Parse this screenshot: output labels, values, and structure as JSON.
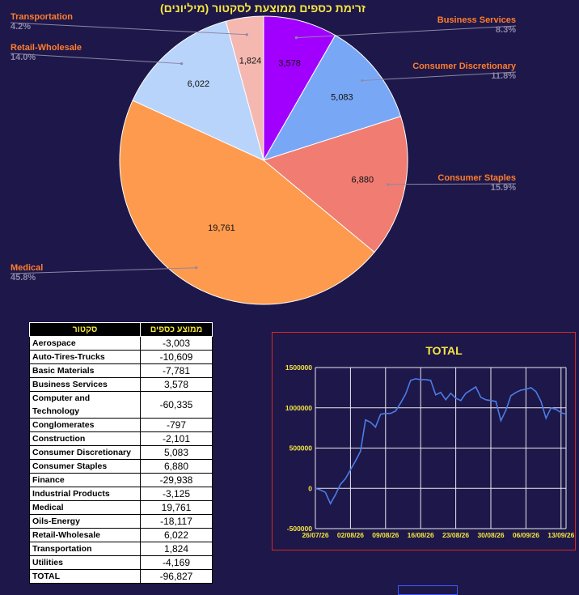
{
  "chart_data": [
    {
      "type": "pie",
      "title": "זרימת כספים ממוצעת לסקטור (מיליונים)",
      "slices": [
        {
          "label": "Business Services",
          "value": 3578,
          "value_label": "3,578",
          "pct_label": "8.3%",
          "color": "#a100fe"
        },
        {
          "label": "Consumer Discretionary",
          "value": 5083,
          "value_label": "5,083",
          "pct_label": "11.8%",
          "color": "#78a8f5"
        },
        {
          "label": "Consumer Staples",
          "value": 6880,
          "value_label": "6,880",
          "pct_label": "15.9%",
          "color": "#f07c72"
        },
        {
          "label": "Medical",
          "value": 19761,
          "value_label": "19,761",
          "pct_label": "45.8%",
          "color": "#fd9a4e"
        },
        {
          "label": "Retail-Wholesale",
          "value": 6022,
          "value_label": "6,022",
          "pct_label": "14.0%",
          "color": "#b8d4fb"
        },
        {
          "label": "Transportation",
          "value": 1824,
          "value_label": "1,824",
          "pct_label": "4.2%",
          "color": "#f5b8b0"
        }
      ],
      "label_color": "#ff7d2e"
    },
    {
      "type": "table",
      "columns": [
        "סקטור",
        "ממוצע כספים"
      ],
      "rows": [
        [
          "Aerospace",
          "-3,003"
        ],
        [
          "Auto-Tires-Trucks",
          "-10,609"
        ],
        [
          "Basic Materials",
          "-7,781"
        ],
        [
          "Business Services",
          "3,578"
        ],
        [
          "Computer and Technology",
          "-60,335"
        ],
        [
          "Conglomerates",
          "-797"
        ],
        [
          "Construction",
          "-2,101"
        ],
        [
          "Consumer Discretionary",
          "5,083"
        ],
        [
          "Consumer Staples",
          "6,880"
        ],
        [
          "Finance",
          "-29,938"
        ],
        [
          "Industrial Products",
          "-3,125"
        ],
        [
          "Medical",
          "19,761"
        ],
        [
          "Oils-Energy",
          "-18,117"
        ],
        [
          "Retail-Wholesale",
          "6,022"
        ],
        [
          "Transportation",
          "1,824"
        ],
        [
          "Utilities",
          "-4,169"
        ],
        [
          "TOTAL",
          "-96,827"
        ]
      ]
    },
    {
      "type": "line",
      "title": "TOTAL",
      "x_ticks": [
        "26/07/26",
        "02/08/26",
        "09/08/26",
        "16/08/26",
        "23/08/26",
        "30/08/26",
        "06/09/26",
        "13/09/26"
      ],
      "y_ticks": [
        1500000,
        1000000,
        500000,
        0,
        -500000
      ],
      "y_tick_labels": [
        "1500000",
        "1000000",
        "500000",
        "0",
        "-500000"
      ],
      "ylim": [
        -500000,
        1500000
      ],
      "x_start": "2026-07-26",
      "series": [
        {
          "color": "#4a7de8",
          "points": [
            [
              "2026-07-26",
              0
            ],
            [
              "2026-07-27",
              -20000
            ],
            [
              "2026-07-28",
              -50000
            ],
            [
              "2026-07-29",
              -190000
            ],
            [
              "2026-07-30",
              -80000
            ],
            [
              "2026-07-31",
              50000
            ],
            [
              "2026-08-01",
              120000
            ],
            [
              "2026-08-02",
              230000
            ],
            [
              "2026-08-03",
              340000
            ],
            [
              "2026-08-04",
              460000
            ],
            [
              "2026-08-05",
              850000
            ],
            [
              "2026-08-06",
              820000
            ],
            [
              "2026-08-07",
              760000
            ],
            [
              "2026-08-08",
              920000
            ],
            [
              "2026-08-09",
              930000
            ],
            [
              "2026-08-10",
              930000
            ],
            [
              "2026-08-11",
              960000
            ],
            [
              "2026-08-12",
              1060000
            ],
            [
              "2026-08-13",
              1170000
            ],
            [
              "2026-08-14",
              1340000
            ],
            [
              "2026-08-15",
              1360000
            ],
            [
              "2026-08-16",
              1350000
            ],
            [
              "2026-08-17",
              1350000
            ],
            [
              "2026-08-18",
              1340000
            ],
            [
              "2026-08-19",
              1160000
            ],
            [
              "2026-08-20",
              1190000
            ],
            [
              "2026-08-21",
              1100000
            ],
            [
              "2026-08-22",
              1180000
            ],
            [
              "2026-08-23",
              1120000
            ],
            [
              "2026-08-24",
              1090000
            ],
            [
              "2026-08-25",
              1180000
            ],
            [
              "2026-08-26",
              1220000
            ],
            [
              "2026-08-27",
              1260000
            ],
            [
              "2026-08-28",
              1130000
            ],
            [
              "2026-08-29",
              1100000
            ],
            [
              "2026-08-30",
              1090000
            ],
            [
              "2026-08-31",
              1080000
            ],
            [
              "2026-09-01",
              840000
            ],
            [
              "2026-09-02",
              970000
            ],
            [
              "2026-09-03",
              1150000
            ],
            [
              "2026-09-04",
              1190000
            ],
            [
              "2026-09-05",
              1220000
            ],
            [
              "2026-09-06",
              1230000
            ],
            [
              "2026-09-07",
              1250000
            ],
            [
              "2026-09-08",
              1200000
            ],
            [
              "2026-09-09",
              1080000
            ],
            [
              "2026-09-10",
              870000
            ],
            [
              "2026-09-11",
              1000000
            ],
            [
              "2026-09-12",
              980000
            ],
            [
              "2026-09-13",
              940000
            ],
            [
              "2026-09-14",
              920000
            ]
          ]
        }
      ],
      "title_color": "#f5e642",
      "tick_color": "#f5e642",
      "border_color": "#d42a2a"
    }
  ]
}
